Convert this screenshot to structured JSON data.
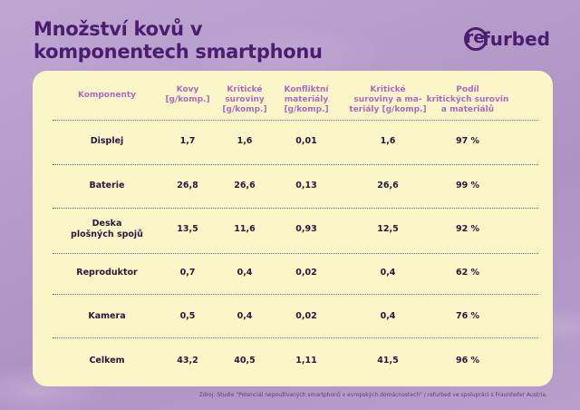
{
  "title": {
    "line1": "Množství kovů v",
    "line2": "komponentech smartphonu"
  },
  "logo": {
    "circle_letter": "re",
    "rest": "furbed",
    "aria": "refurbed-logo"
  },
  "table": {
    "headers": [
      "Komponenty",
      "Kovy\n[g/komp.]",
      "Kritické\nsuroviny\n[g/komp.]",
      "Konfliktní\nmateriály\n[g/komp.]",
      "Kritické\nsuroviny a ma-\nteriály [g/komp.]",
      "Podíl\nkritických surovin\na materiálů"
    ],
    "rows": [
      [
        "Displej",
        "1,7",
        "1,6",
        "0,01",
        "1,6",
        "97 %"
      ],
      [
        "Baterie",
        "26,8",
        "26,6",
        "0,13",
        "26,6",
        "99 %"
      ],
      [
        "Deska\nplošných spojů",
        "13,5",
        "11,6",
        "0,93",
        "12,5",
        "92 %"
      ],
      [
        "Reproduktor",
        "0,7",
        "0,4",
        "0,02",
        "0,4",
        "62 %"
      ],
      [
        "Kamera",
        "0,5",
        "0,4",
        "0,02",
        "0,4",
        "76 %"
      ],
      [
        "Celkem",
        "43,2",
        "40,5",
        "1,11",
        "41,5",
        "96 %"
      ]
    ]
  },
  "footnote": "Zdroj: Studie \"Potenciál nepoužívaných  smartphonů v evropských domácnostech\" / refurbed ve spolupráci s Fraunhofer Austria.",
  "colors": {
    "brand": "#4a1d6e",
    "header": "#b067c8",
    "card": "#fbf6c8",
    "background": "#b69ac9"
  }
}
